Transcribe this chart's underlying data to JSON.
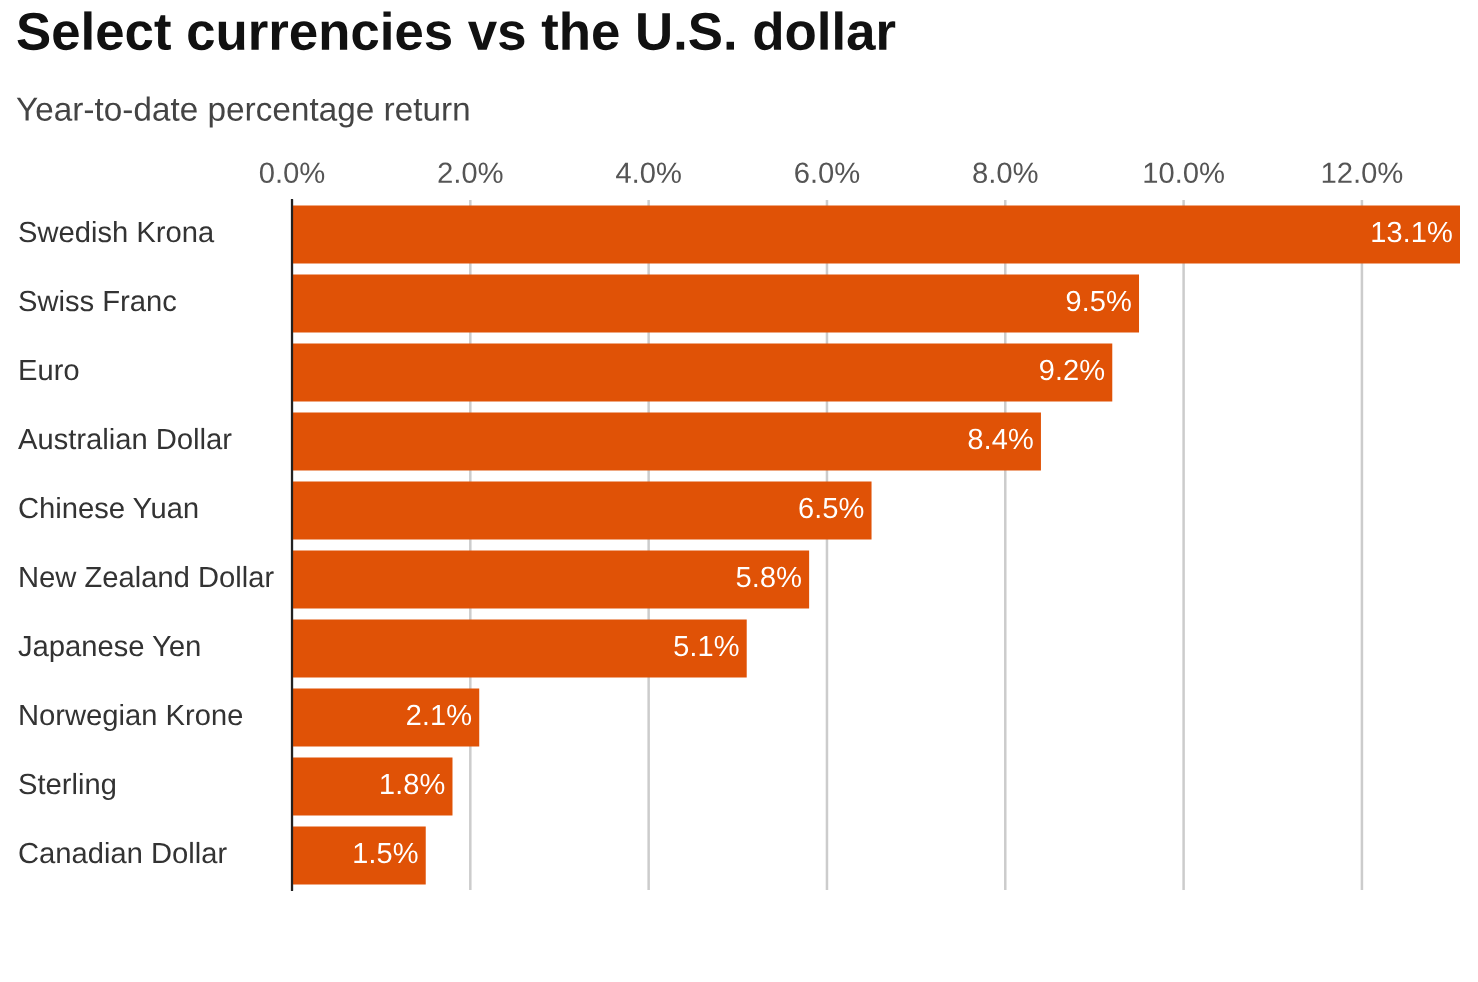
{
  "chart_data": {
    "type": "bar",
    "orientation": "horizontal",
    "title": "Select currencies vs the U.S. dollar",
    "subtitle": "Year-to-date percentage return",
    "categories": [
      "Swedish Krona",
      "Swiss Franc",
      "Euro",
      "Australian Dollar",
      "Chinese Yuan",
      "New Zealand Dollar",
      "Japanese Yen",
      "Norwegian Krone",
      "Sterling",
      "Canadian Dollar"
    ],
    "values": [
      13.1,
      9.5,
      9.2,
      8.4,
      6.5,
      5.8,
      5.1,
      2.1,
      1.8,
      1.5
    ],
    "value_labels": [
      "13.1%",
      "9.5%",
      "9.2%",
      "8.4%",
      "6.5%",
      "5.8%",
      "5.1%",
      "2.1%",
      "1.8%",
      "1.5%"
    ],
    "color": "#e05206",
    "xlim": [
      0,
      13.1
    ],
    "xticks": [
      {
        "value": 0,
        "label": "0.0%"
      },
      {
        "value": 2,
        "label": "2.0%"
      },
      {
        "value": 4,
        "label": "4.0%"
      },
      {
        "value": 6,
        "label": "6.0%"
      },
      {
        "value": 8,
        "label": "8.0%"
      },
      {
        "value": 10,
        "label": "10.0%"
      },
      {
        "value": 12,
        "label": "12.0%"
      }
    ],
    "grid": "x"
  }
}
